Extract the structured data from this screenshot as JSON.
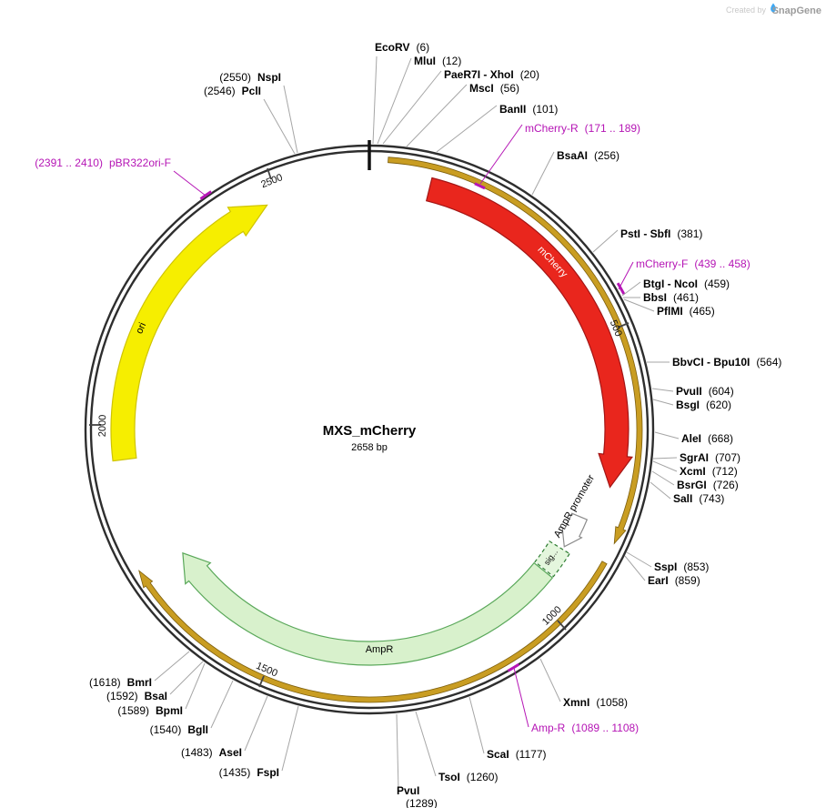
{
  "watermark": {
    "created_by": "Created by",
    "brand": "SnapGene"
  },
  "plasmid": {
    "name": "MXS_mCherry",
    "size_label": "2658 bp"
  },
  "ticks": [
    "500",
    "1000",
    "1500",
    "2000",
    "2500"
  ],
  "orf_arc_color": "#c99d22",
  "primer_color": "#b515b5",
  "features": [
    {
      "label": "mCherry",
      "fill": "#e9261d",
      "stroke": "#a31515",
      "text_color": "#ffffff"
    },
    {
      "label": "ori",
      "fill": "#f6ee00",
      "stroke": "#cfc400",
      "text_color": "#000000"
    },
    {
      "label": "AmpR",
      "fill": "#d8f1cc",
      "stroke": "#5aa85a",
      "text_color": "#000000"
    },
    {
      "label": "sig...",
      "fill": "#e4f6dd",
      "stroke": "#2e7d32",
      "text_color": "#000000"
    },
    {
      "label": "AmpR promoter",
      "fill": "#ffffff",
      "stroke": "#8c8c8c",
      "text_color": "#000000"
    }
  ],
  "sites": [
    {
      "name": "EcoRV",
      "pos": "(6)"
    },
    {
      "name": "MluI",
      "pos": "(12)"
    },
    {
      "name": "PaeR7I - XhoI",
      "pos": "(20)"
    },
    {
      "name": "MscI",
      "pos": "(56)"
    },
    {
      "name": "BanII",
      "pos": "(101)"
    },
    {
      "name": "mCherry-R",
      "pos": "(171 .. 189)",
      "primer": true
    },
    {
      "name": "BsaAI",
      "pos": "(256)"
    },
    {
      "name": "PstI - SbfI",
      "pos": "(381)"
    },
    {
      "name": "mCherry-F",
      "pos": "(439 .. 458)",
      "primer": true
    },
    {
      "name": "BtgI - NcoI",
      "pos": "(459)"
    },
    {
      "name": "BbsI",
      "pos": "(461)"
    },
    {
      "name": "PflMI",
      "pos": "(465)"
    },
    {
      "name": "BbvCI - Bpu10I",
      "pos": "(564)"
    },
    {
      "name": "PvuII",
      "pos": "(604)"
    },
    {
      "name": "BsgI",
      "pos": "(620)"
    },
    {
      "name": "AleI",
      "pos": "(668)"
    },
    {
      "name": "SgrAI",
      "pos": "(707)"
    },
    {
      "name": "XcmI",
      "pos": "(712)"
    },
    {
      "name": "BsrGI",
      "pos": "(726)"
    },
    {
      "name": "SalI",
      "pos": "(743)"
    },
    {
      "name": "SspI",
      "pos": "(853)"
    },
    {
      "name": "EarI",
      "pos": "(859)"
    },
    {
      "name": "XmnI",
      "pos": "(1058)"
    },
    {
      "name": "Amp-R",
      "pos": "(1089 .. 1108)",
      "primer": true
    },
    {
      "name": "ScaI",
      "pos": "(1177)"
    },
    {
      "name": "TsoI",
      "pos": "(1260)"
    },
    {
      "name": "PvuI",
      "pos": "(1289)"
    },
    {
      "name": "FspI",
      "pos": "(1435)"
    },
    {
      "name": "AseI",
      "pos": "(1483)"
    },
    {
      "name": "BglI",
      "pos": "(1540)"
    },
    {
      "name": "BpmI",
      "pos": "(1589)"
    },
    {
      "name": "BsaI",
      "pos": "(1592)"
    },
    {
      "name": "BmrI",
      "pos": "(1618)"
    },
    {
      "name": "PclI",
      "pos": "(2546)"
    },
    {
      "name": "NspI",
      "pos": "(2550)"
    },
    {
      "name": "pBR322ori-F",
      "pos": "(2391 .. 2410)",
      "primer": true
    }
  ]
}
